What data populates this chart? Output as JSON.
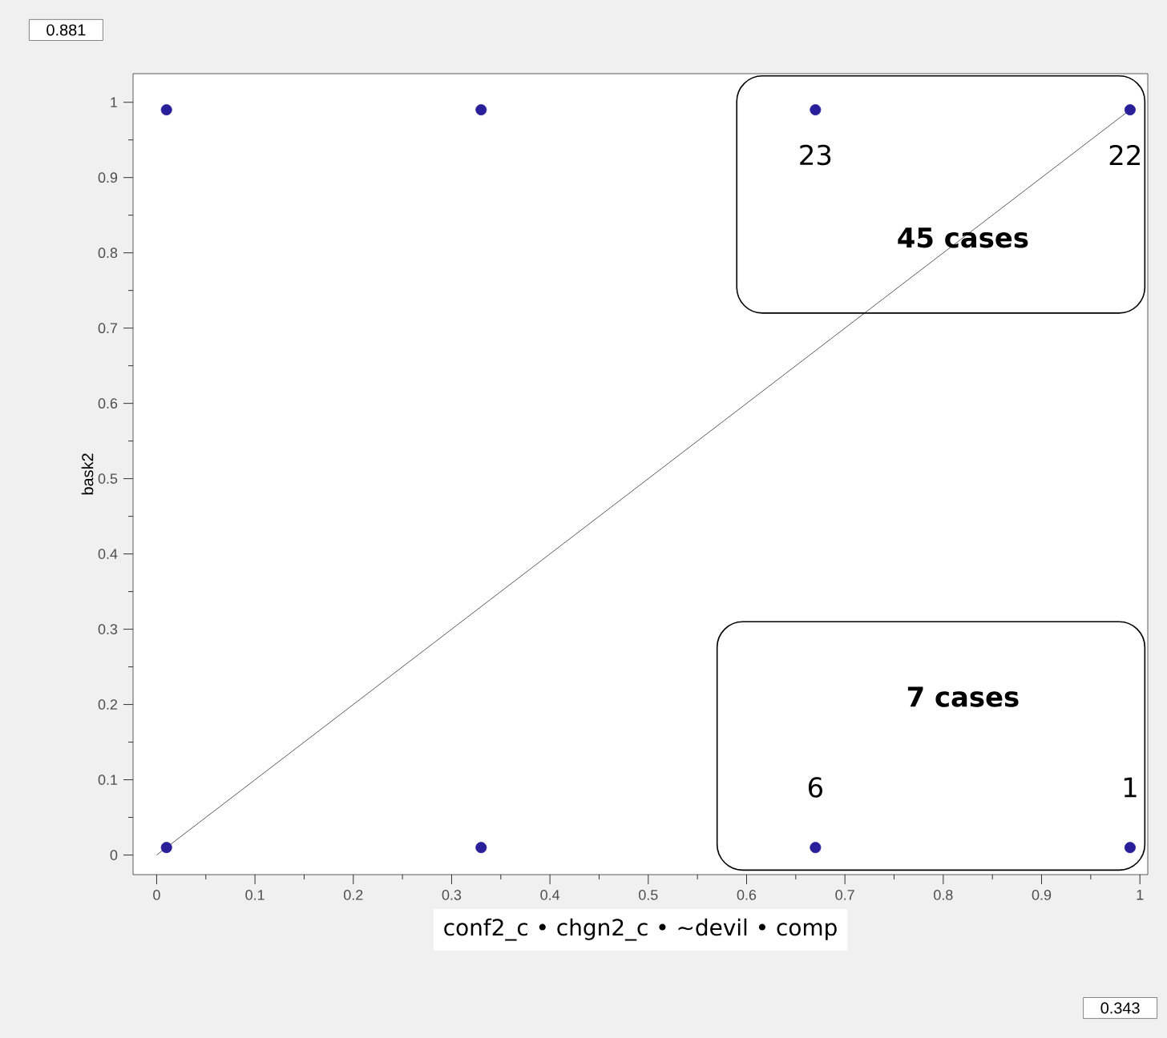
{
  "chart_data": {
    "type": "scatter",
    "xlabel": "conf2_c • chgn2_c • ~devil • comp",
    "ylabel": "bask2",
    "series": [
      {
        "color": "#2a1f9a",
        "x": [
          0.01,
          0.33,
          0.67,
          0.99,
          0.01,
          0.33,
          0.67,
          0.99
        ],
        "values": [
          0.99,
          0.99,
          0.99,
          0.99,
          0.01,
          0.01,
          0.01,
          0.01
        ]
      },
      {
        "type": "line",
        "marker": "none",
        "line_style": "solid",
        "color": "#333333",
        "x": [
          0.0,
          0.99
        ],
        "values": [
          0.0,
          0.99
        ]
      }
    ],
    "xlim": [
      -0.024,
      1.008
    ],
    "ylim": [
      -0.026,
      1.038
    ],
    "xticks": [
      0,
      0.1,
      0.2,
      0.3,
      0.4,
      0.5,
      0.6,
      0.7,
      0.8,
      0.9,
      1
    ],
    "yticks": [
      0,
      0.1,
      0.2,
      0.3,
      0.4,
      0.5,
      0.6,
      0.7,
      0.8,
      0.9,
      1
    ],
    "grid": false,
    "marker": "circle",
    "annotations": [
      "23",
      "22",
      "**45 cases**",
      "**7 cases**",
      "6",
      "1",
      "0.881",
      "0.343"
    ]
  }
}
